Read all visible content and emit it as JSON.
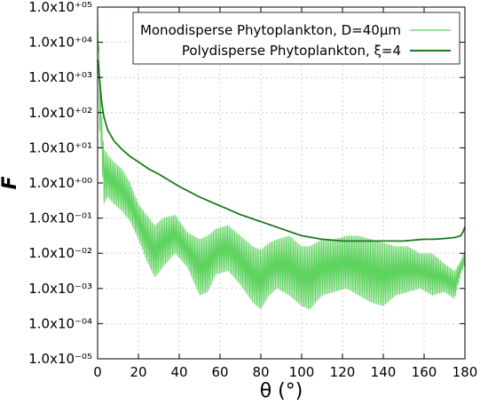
{
  "chart_data": {
    "type": "line",
    "xlabel": "θ (°)",
    "ylabel": "F̃",
    "xlim": [
      0,
      180
    ],
    "ylim_log10": [
      -5,
      5
    ],
    "y_scale": "log",
    "grid": true,
    "legend_position": "top-right",
    "x_ticks": [
      "0",
      "20",
      "40",
      "60",
      "80",
      "100",
      "120",
      "140",
      "160",
      "180"
    ],
    "y_ticks": [
      "1.0x10⁻⁰⁵",
      "1.0x10⁻⁰⁴",
      "1.0x10⁻⁰³",
      "1.0x10⁻⁰²",
      "1.0x10⁻⁰¹",
      "1.0x10⁺⁰⁰",
      "1.0x10⁺⁰¹",
      "1.0x10⁺⁰²",
      "1.0x10⁺⁰³",
      "1.0x10⁺⁰⁴",
      "1.0x10⁺⁰⁵"
    ],
    "series": [
      {
        "name": "Monodisperse Phytoplankton, D=40μm",
        "color": "#5fd35f",
        "style": "oscillating-envelope",
        "envelope_note": "values are log10 of upper / lower envelope of rapid oscillations",
        "x": [
          0,
          1,
          2,
          3,
          5,
          8,
          12,
          16,
          20,
          24,
          28,
          32,
          38,
          44,
          50,
          54,
          58,
          64,
          70,
          76,
          80,
          84,
          88,
          94,
          100,
          104,
          110,
          116,
          122,
          128,
          134,
          140,
          146,
          152,
          158,
          164,
          170,
          175,
          178,
          180
        ],
        "upper": [
          4.9,
          3.5,
          2.0,
          1.0,
          0.8,
          0.6,
          0.4,
          0.0,
          -0.6,
          -0.9,
          -1.2,
          -1.0,
          -0.9,
          -1.4,
          -1.6,
          -1.5,
          -1.3,
          -1.2,
          -1.5,
          -1.8,
          -1.9,
          -1.7,
          -1.6,
          -1.5,
          -1.8,
          -1.8,
          -1.6,
          -1.6,
          -1.5,
          -1.5,
          -1.6,
          -1.7,
          -1.8,
          -1.8,
          -2.0,
          -2.0,
          -2.3,
          -2.5,
          -2.2,
          -1.9
        ],
        "lower": [
          4.9,
          1.5,
          0.8,
          -0.6,
          -0.4,
          -0.6,
          -0.8,
          -1.1,
          -1.6,
          -2.2,
          -2.7,
          -2.4,
          -2.0,
          -2.4,
          -3.2,
          -3.1,
          -2.6,
          -2.5,
          -2.9,
          -3.4,
          -3.6,
          -3.2,
          -3.0,
          -3.2,
          -3.5,
          -3.6,
          -3.2,
          -3.1,
          -3.0,
          -3.2,
          -3.4,
          -3.5,
          -3.2,
          -3.1,
          -3.0,
          -3.2,
          -3.1,
          -3.3,
          -2.6,
          -2.3
        ]
      },
      {
        "name": "Polydisperse Phytoplankton, ξ=4",
        "color": "#1d7a1d",
        "style": "smooth",
        "x": [
          0,
          0.5,
          1,
          2,
          3,
          5,
          8,
          12,
          16,
          20,
          25,
          30,
          40,
          50,
          60,
          70,
          80,
          90,
          100,
          110,
          120,
          130,
          140,
          150,
          160,
          165,
          170,
          175,
          178,
          179,
          180
        ],
        "log10_y": [
          3.5,
          3.3,
          2.9,
          2.3,
          1.9,
          1.5,
          1.2,
          0.95,
          0.75,
          0.6,
          0.4,
          0.25,
          -0.1,
          -0.4,
          -0.65,
          -0.9,
          -1.1,
          -1.3,
          -1.5,
          -1.6,
          -1.65,
          -1.65,
          -1.65,
          -1.65,
          -1.6,
          -1.6,
          -1.58,
          -1.55,
          -1.5,
          -1.4,
          -1.25
        ]
      }
    ]
  }
}
